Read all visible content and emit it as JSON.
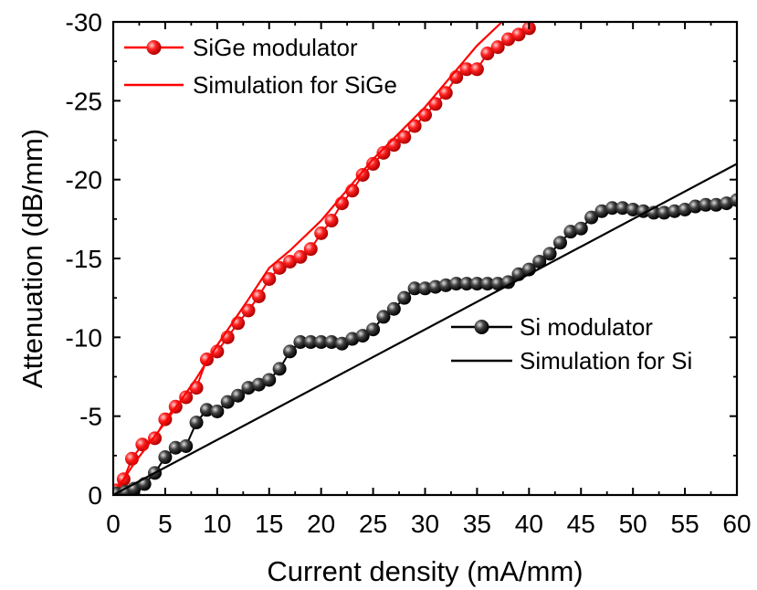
{
  "chart_data": {
    "type": "line",
    "xlabel": "Current density (mA/mm)",
    "ylabel": "Attenuation (dB/mm)",
    "xlim": [
      0,
      60
    ],
    "ylim": [
      0,
      -30
    ],
    "y_axis_inverted": true,
    "x_ticks": [
      0,
      5,
      10,
      15,
      20,
      25,
      30,
      35,
      40,
      45,
      50,
      55,
      60
    ],
    "x_tick_labels": [
      "0",
      "5",
      "10",
      "15",
      "20",
      "25",
      "30",
      "35",
      "40",
      "45",
      "50",
      "55",
      "60"
    ],
    "y_ticks": [
      0,
      -5,
      -10,
      -15,
      -20,
      -25,
      -30
    ],
    "y_tick_labels": [
      "0",
      "-5",
      "-10",
      "-15",
      "-20",
      "-25",
      "-30"
    ],
    "grid": false,
    "legend_placement": [
      "top-left",
      "right-middle"
    ],
    "series": [
      {
        "name": "SiGe modulator",
        "color": "#ff0000",
        "marker": "sphere",
        "x": [
          0.3,
          1.0,
          1.8,
          2.8,
          4.0,
          5.0,
          6.0,
          7.0,
          8.0,
          9.0,
          10.0,
          11.0,
          12.0,
          13.0,
          14.0,
          15.0,
          16.0,
          17.0,
          18.0,
          19.0,
          20.0,
          21.0,
          22.0,
          23.0,
          24.0,
          25.0,
          26.0,
          27.0,
          28.0,
          29.0,
          30.0,
          31.0,
          32.0,
          33.0,
          34.0,
          35.0,
          36.0,
          37.0,
          38.0,
          39.0,
          40.0
        ],
        "y": [
          -0.3,
          -1.0,
          -2.3,
          -3.2,
          -3.6,
          -4.8,
          -5.6,
          -6.2,
          -6.8,
          -8.6,
          -9.1,
          -10.0,
          -10.9,
          -11.7,
          -12.6,
          -13.7,
          -14.4,
          -14.8,
          -15.1,
          -15.6,
          -16.6,
          -17.4,
          -18.5,
          -19.3,
          -20.3,
          -21.0,
          -21.7,
          -22.2,
          -22.7,
          -23.4,
          -24.1,
          -24.8,
          -25.5,
          -26.5,
          -27.0,
          -27.0,
          -28.0,
          -28.4,
          -28.9,
          -29.2,
          -29.6
        ]
      },
      {
        "name": "Simulation for SiGe",
        "color": "#ff0000",
        "marker": "none",
        "x": [
          0,
          2,
          5,
          8,
          10,
          13,
          15,
          17,
          20,
          25,
          30,
          35,
          37.4
        ],
        "y": [
          0,
          -2.0,
          -4.6,
          -7.4,
          -9.5,
          -12.4,
          -14.4,
          -15.5,
          -17.4,
          -21.3,
          -24.6,
          -28.5,
          -30.0
        ]
      },
      {
        "name": "Si modulator",
        "color": "#000000",
        "marker": "sphere",
        "x": [
          0.3,
          1.2,
          2.0,
          3.0,
          4.0,
          5.0,
          6.0,
          7.0,
          8.0,
          9.0,
          10.0,
          11.0,
          12.0,
          13.0,
          14.0,
          15.0,
          16.0,
          17.0,
          18.0,
          19.0,
          20.0,
          21.0,
          22.0,
          23.0,
          24.0,
          25.0,
          26.0,
          27.0,
          28.0,
          29.0,
          30.0,
          31.0,
          32.0,
          33.0,
          34.0,
          35.0,
          36.0,
          37.0,
          38.0,
          39.0,
          40.0,
          41.0,
          42.0,
          43.0,
          44.0,
          45.0,
          46.0,
          47.0,
          48.0,
          49.0,
          50.0,
          51.0,
          52.0,
          53.0,
          54.0,
          55.0,
          56.0,
          57.0,
          58.0,
          59.0,
          60.0
        ],
        "y": [
          -0.1,
          -0.2,
          -0.4,
          -0.7,
          -1.4,
          -2.4,
          -3.0,
          -3.1,
          -4.6,
          -5.4,
          -5.3,
          -5.9,
          -6.3,
          -6.8,
          -7.0,
          -7.3,
          -8.0,
          -9.1,
          -9.7,
          -9.7,
          -9.7,
          -9.7,
          -9.6,
          -9.9,
          -10.1,
          -10.5,
          -11.3,
          -11.8,
          -12.5,
          -13.1,
          -13.1,
          -13.2,
          -13.3,
          -13.4,
          -13.4,
          -13.4,
          -13.4,
          -13.4,
          -13.5,
          -14.0,
          -14.3,
          -14.8,
          -15.3,
          -16.0,
          -16.7,
          -16.9,
          -17.6,
          -18.0,
          -18.2,
          -18.2,
          -18.1,
          -18.0,
          -17.9,
          -17.9,
          -18.0,
          -18.1,
          -18.3,
          -18.4,
          -18.4,
          -18.5,
          -18.7
        ]
      },
      {
        "name": "Simulation for Si",
        "color": "#000000",
        "marker": "none",
        "x": [
          0,
          60
        ],
        "y": [
          0,
          -21.0
        ]
      }
    ]
  }
}
